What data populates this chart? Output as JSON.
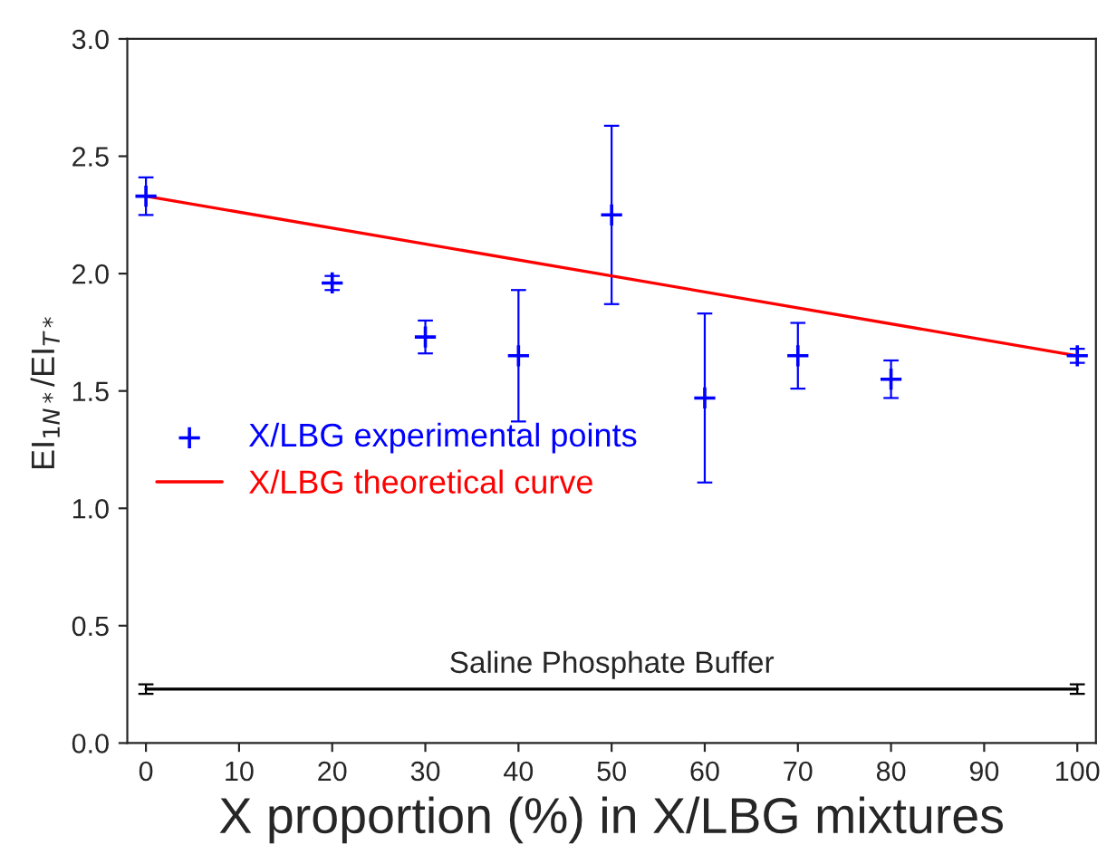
{
  "chart_data": {
    "type": "scatter",
    "xlabel": "X proportion (%) in X/LBG mixtures",
    "ylabel": "EI$_{1N*}$/EI$_{T*}$",
    "xlim": [
      -2,
      102
    ],
    "ylim": [
      0,
      3.0
    ],
    "xticks": [
      0,
      10,
      20,
      30,
      40,
      50,
      60,
      70,
      80,
      90,
      100
    ],
    "yticks": [
      {
        "value": 0,
        "label": "0.0"
      },
      0.5,
      {
        "value": 1,
        "label": "1.0"
      },
      1.5,
      {
        "value": 2,
        "label": "2.0"
      },
      2.5,
      {
        "value": 3,
        "label": "3.0"
      }
    ],
    "grid": false,
    "legend": "left",
    "annotations": [
      {
        "text": "Saline Phosphate Buffer",
        "x": 50,
        "y": 0.23
      }
    ],
    "series": [
      {
        "name": "X/LBG experimental points",
        "marker": "cross",
        "color": "#0000ff",
        "x": [
          0,
          20,
          30,
          40,
          50,
          60,
          70,
          80,
          100
        ],
        "values": [
          2.33,
          1.96,
          1.73,
          1.65,
          2.25,
          1.47,
          1.65,
          1.55,
          1.65
        ],
        "errors": [
          0.08,
          0.03,
          0.07,
          0.28,
          0.38,
          0.36,
          0.14,
          0.08,
          0.03
        ]
      },
      {
        "name": "X/LBG theoretical curve",
        "type": "line",
        "color": "#ff0000",
        "x": [
          0,
          100
        ],
        "values": [
          2.33,
          1.65
        ]
      },
      {
        "type": "line",
        "color": "#000000",
        "x": [
          0,
          100
        ],
        "values": [
          0.23,
          0.23
        ],
        "errors": [
          0.02,
          0.02
        ]
      }
    ]
  }
}
